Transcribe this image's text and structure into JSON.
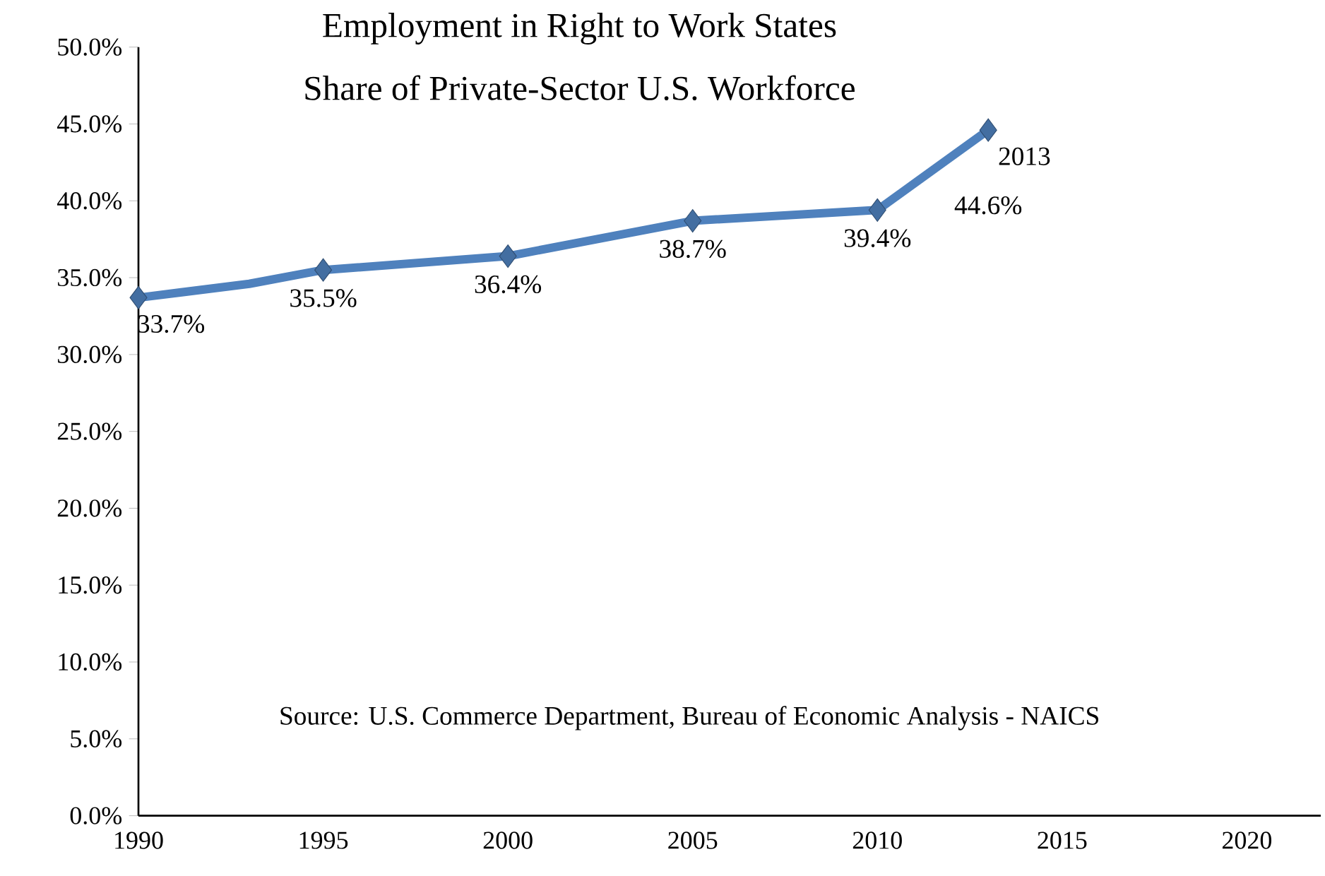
{
  "chart_data": {
    "type": "line",
    "title": "Employment in Right to Work States",
    "subtitle": "Share of Private-Sector U.S. Workforce",
    "x": [
      1990,
      1993,
      1995,
      2000,
      2005,
      2010,
      2013
    ],
    "series": [
      {
        "color": "#4f81bd",
        "values": [
          33.7,
          34.6,
          35.5,
          36.4,
          38.7,
          39.4,
          44.6
        ],
        "value_labels": [
          "33.7%",
          null,
          "35.5%",
          "36.4%",
          "38.7%",
          "39.4%",
          "44.6%"
        ]
      }
    ],
    "marker": "diamond",
    "line_style": "solid",
    "xlim": [
      1990,
      2022
    ],
    "xticks": [
      1990,
      1995,
      2000,
      2005,
      2010,
      2015,
      2020
    ],
    "ylim": [
      0,
      50
    ],
    "yticks": [
      {
        "value": 0,
        "label": "0.0%"
      },
      {
        "value": 5,
        "label": "5.0%"
      },
      {
        "value": 10,
        "label": "10.0%"
      },
      {
        "value": 15,
        "label": "15.0%"
      },
      {
        "value": 20,
        "label": "20.0%"
      },
      {
        "value": 25,
        "label": "25.0%"
      },
      {
        "value": 30,
        "label": "30.0%"
      },
      {
        "value": 35,
        "label": "35.0%"
      },
      {
        "value": 40,
        "label": "40.0%"
      },
      {
        "value": 45,
        "label": "45.0%"
      },
      {
        "value": 50,
        "label": "50.0%"
      }
    ],
    "annotations": [
      {
        "text": "2013",
        "x": 2013,
        "y": 44.6
      },
      "Source: U.S. Commerce Department, Bureau of Economic Analysis - NAICS"
    ]
  }
}
